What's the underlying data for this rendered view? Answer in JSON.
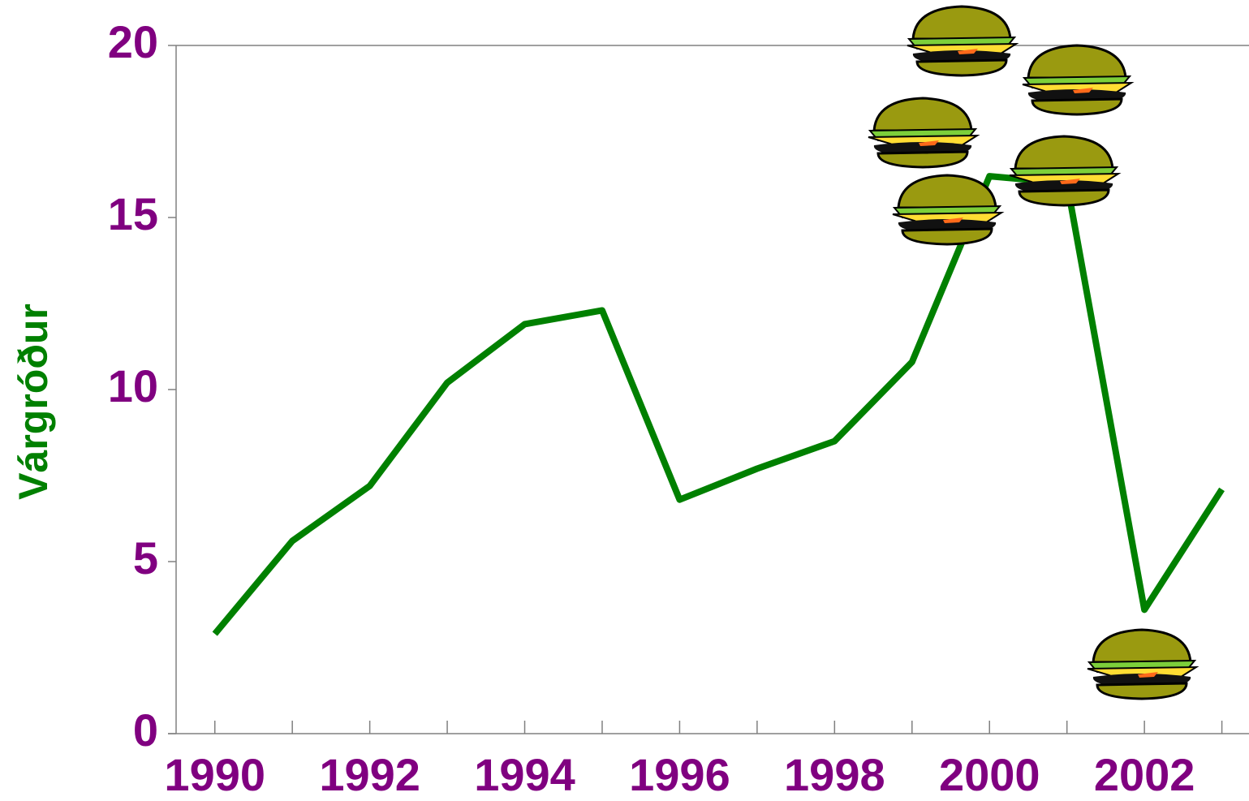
{
  "chart_data": {
    "type": "line",
    "y_label": "Várgróður",
    "x": [
      1990,
      1991,
      1992,
      1993,
      1994,
      1995,
      1996,
      1997,
      1998,
      1999,
      2000,
      2001,
      2002,
      2003
    ],
    "values": [
      2.9,
      5.6,
      7.2,
      10.2,
      11.9,
      12.3,
      6.8,
      7.7,
      8.5,
      10.8,
      16.2,
      16.0,
      3.6,
      7.1
    ],
    "color": "#008000",
    "xlim": [
      1989.5,
      2003.35
    ],
    "xticks": [
      1990,
      1992,
      1994,
      1996,
      1998,
      2000,
      2002
    ],
    "ylim": [
      0,
      20
    ],
    "yticks": [
      0,
      5,
      10,
      15,
      20
    ]
  }
}
